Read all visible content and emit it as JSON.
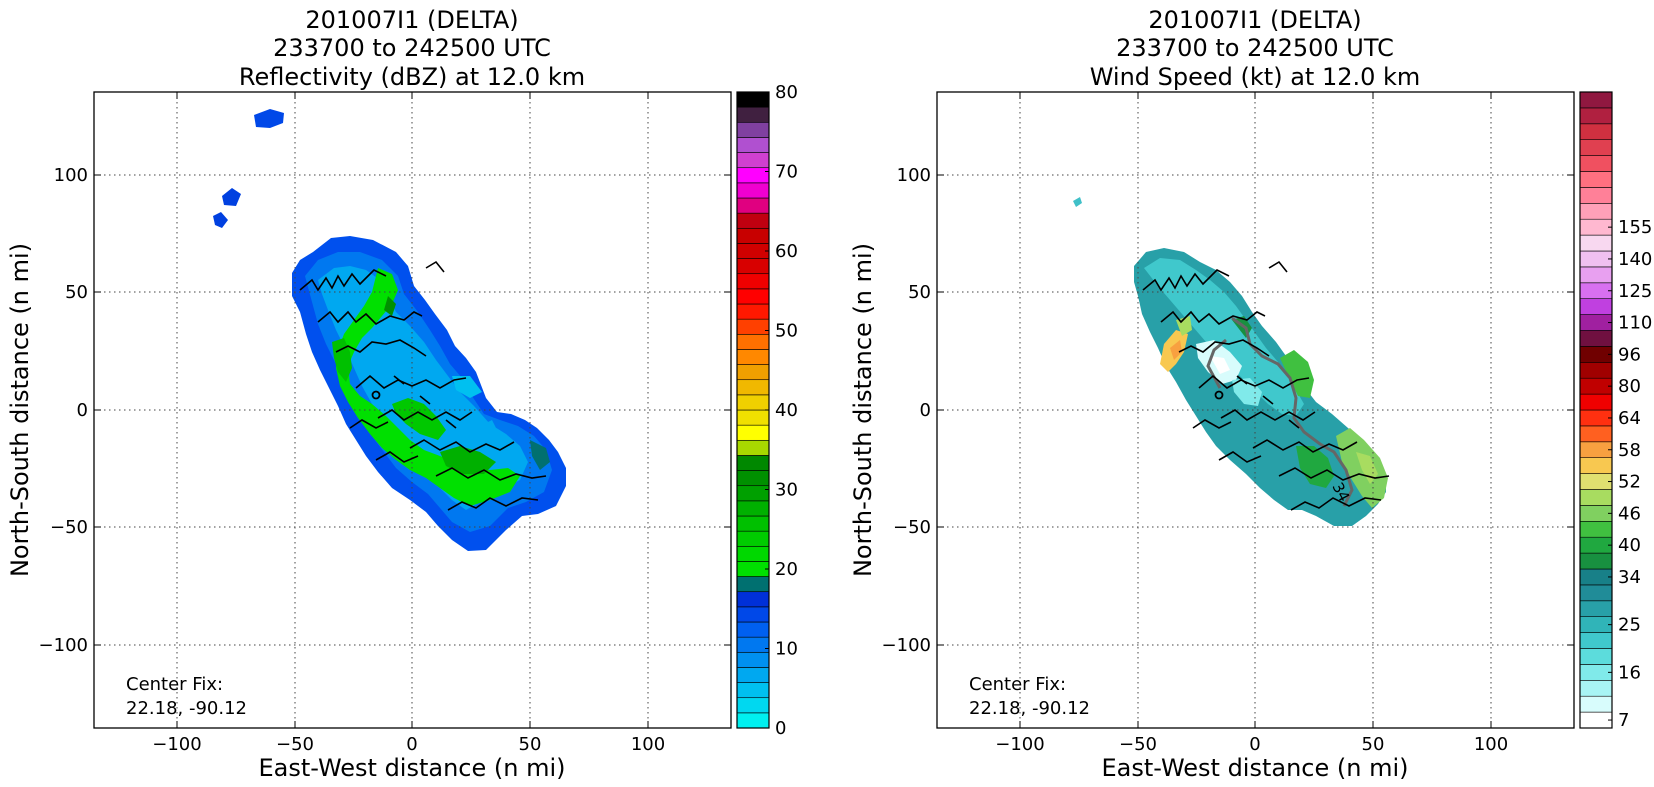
{
  "chart_data": [
    {
      "type": "heatmap",
      "title_lines": [
        "201007I1 (DELTA)",
        "233700 to 242500 UTC",
        "Reflectivity (dBZ) at 12.0 km"
      ],
      "xlabel": "East-West distance (n mi)",
      "ylabel": "North-South distance (n mi)",
      "xlim": [
        -135,
        135
      ],
      "ylim": [
        -135,
        135
      ],
      "xticks": [
        -100,
        -50,
        0,
        50,
        100
      ],
      "yticks": [
        -100,
        -50,
        0,
        50,
        100
      ],
      "xtick_labels": [
        "−100",
        "−50",
        "0",
        "50",
        "100"
      ],
      "ytick_labels": [
        "−100",
        "−50",
        "0",
        "50",
        "100"
      ],
      "grid": true,
      "annotation_lines": [
        "Center Fix:",
        "22.18, -90.12"
      ],
      "colorbar": {
        "min": 0,
        "max": 80,
        "tick_values": [
          0,
          10,
          20,
          30,
          40,
          50,
          60,
          70,
          80
        ],
        "tick_labels": [
          "0",
          "10",
          "20",
          "30",
          "40",
          "50",
          "60",
          "70",
          "80"
        ],
        "colors": [
          "#00f0f0",
          "#00d8f0",
          "#00c0f0",
          "#00a8f0",
          "#0090f0",
          "#0078f0",
          "#0060f0",
          "#0048e8",
          "#0030d8",
          "#007070",
          "#00e000",
          "#00d800",
          "#00cc00",
          "#00c000",
          "#00b000",
          "#00a000",
          "#009000",
          "#008800",
          "#a8d800",
          "#ffff00",
          "#f0e000",
          "#f0d000",
          "#f0b800",
          "#f0a000",
          "#ff8800",
          "#ff7000",
          "#ff4000",
          "#ff1800",
          "#ff0000",
          "#f00000",
          "#d80000",
          "#d00000",
          "#c80000",
          "#c00010",
          "#e00080",
          "#f000d0",
          "#ff00ff",
          "#d040d0",
          "#b050d0",
          "#8040a0",
          "#402040",
          "#000000"
        ]
      }
    },
    {
      "type": "heatmap",
      "title_lines": [
        "201007I1 (DELTA)",
        "233700 to 242500 UTC",
        "Wind Speed (kt) at 12.0 km"
      ],
      "xlabel": "East-West distance (n mi)",
      "ylabel": "North-South distance (n mi)",
      "xlim": [
        -135,
        135
      ],
      "ylim": [
        -135,
        135
      ],
      "xticks": [
        -100,
        -50,
        0,
        50,
        100
      ],
      "yticks": [
        -100,
        -50,
        0,
        50,
        100
      ],
      "xtick_labels": [
        "−100",
        "−50",
        "0",
        "50",
        "100"
      ],
      "ytick_labels": [
        "−100",
        "−50",
        "0",
        "50",
        "100"
      ],
      "grid": true,
      "annotation_lines": [
        "Center Fix:",
        "22.18, -90.12"
      ],
      "contour_label": "34",
      "colorbar": {
        "tick_labels": [
          "7",
          "16",
          "25",
          "34",
          "40",
          "46",
          "52",
          "58",
          "64",
          "80",
          "96",
          "110",
          "125",
          "140",
          "155"
        ],
        "tick_band_index": [
          0,
          3,
          6,
          9,
          11,
          13,
          15,
          17,
          19,
          21,
          23,
          25,
          27,
          29,
          31
        ],
        "colors": [
          "#ffffff",
          "#d8fcfc",
          "#a8f4f4",
          "#80eaea",
          "#5cdcdc",
          "#40c8cc",
          "#30b4b8",
          "#28a0a8",
          "#208c98",
          "#188088",
          "#189040",
          "#20a840",
          "#40c040",
          "#80d060",
          "#a8dc60",
          "#e0e070",
          "#f8c850",
          "#f8a040",
          "#ff6020",
          "#ff3010",
          "#f00000",
          "#c00000",
          "#a00000",
          "#700000",
          "#701040",
          "#a020a0",
          "#c040e0",
          "#d870f0",
          "#e8a0f0",
          "#f0c0f0",
          "#f8d8f0",
          "#ffb8d0",
          "#ffa0b8",
          "#ff8098",
          "#ff7080",
          "#f05060",
          "#e04050",
          "#d03040",
          "#b02040",
          "#901840"
        ]
      }
    }
  ]
}
